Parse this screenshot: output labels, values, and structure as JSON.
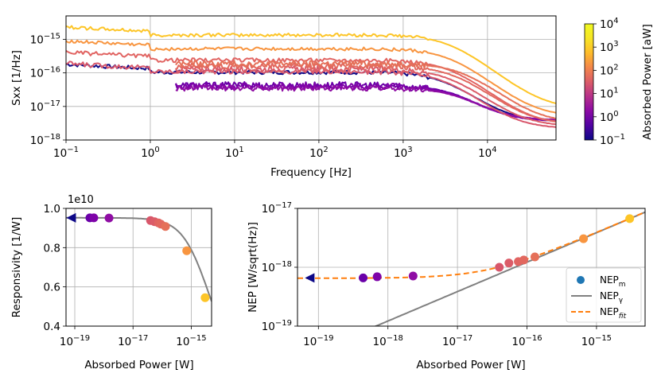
{
  "chart_data": [
    {
      "type": "line",
      "xlabel": "Frequency [Hz]",
      "ylabel": "Sxx [1/Hz]",
      "xscale": "log",
      "yscale": "log",
      "xlim": [
        0.1,
        65000
      ],
      "ylim": [
        1e-18,
        5e-15
      ],
      "x_ticks": [
        {
          "v": 0.1,
          "m": "10",
          "e": "−1"
        },
        {
          "v": 1,
          "m": "10",
          "e": "0"
        },
        {
          "v": 10,
          "m": "10",
          "e": "1"
        },
        {
          "v": 100,
          "m": "10",
          "e": "2"
        },
        {
          "v": 1000,
          "m": "10",
          "e": "3"
        },
        {
          "v": 10000,
          "m": "10",
          "e": "4"
        }
      ],
      "y_ticks": [
        {
          "v": 1e-18,
          "m": "10",
          "e": "−18"
        },
        {
          "v": 1e-17,
          "m": "10",
          "e": "−17"
        },
        {
          "v": 1e-16,
          "m": "10",
          "e": "−16"
        },
        {
          "v": 1e-15,
          "m": "10",
          "e": "−15"
        }
      ],
      "grid": true,
      "colorbar": {
        "label": "Absorbed Power [aW]",
        "scale": "log",
        "range": [
          0.1,
          10000
        ],
        "colormap": "plasma",
        "ticks": [
          {
            "v": 0.1,
            "m": "10",
            "e": "−1"
          },
          {
            "v": 1,
            "m": "10",
            "e": "0"
          },
          {
            "v": 10,
            "m": "10",
            "e": "1"
          },
          {
            "v": 100,
            "m": "10",
            "e": "2"
          },
          {
            "v": 1000,
            "m": "10",
            "e": "3"
          },
          {
            "v": 10000,
            "m": "10",
            "e": "4"
          }
        ]
      },
      "series": [
        {
          "color": "#0d0887",
          "fmin": 0.1,
          "level": 1.05e-16,
          "rolloff_hz": 3000,
          "white": 3.5e-18,
          "noise": 0.06
        },
        {
          "color": "#6a00a8",
          "fmin": 2,
          "level": 4.3e-17,
          "rolloff_hz": 4000,
          "white": 3.6e-18,
          "noise": 0.1
        },
        {
          "color": "#7e03a8",
          "fmin": 2,
          "level": 4e-17,
          "rolloff_hz": 4000,
          "white": 3.8e-18,
          "noise": 0.1
        },
        {
          "color": "#8f0da4",
          "fmin": 2,
          "level": 3.5e-17,
          "rolloff_hz": 4500,
          "white": 3.9e-18,
          "noise": 0.08
        },
        {
          "color": "#d8576b",
          "fmin": 0.1,
          "level": 1.1e-16,
          "rolloff_hz": 3000,
          "white": 2.2e-18,
          "noise": 0.07
        },
        {
          "color": "#db5c68",
          "fmin": 2,
          "level": 1.3e-16,
          "rolloff_hz": 3500,
          "white": 2.6e-18,
          "noise": 0.09
        },
        {
          "color": "#e16462",
          "fmin": 0.1,
          "level": 2.4e-16,
          "rolloff_hz": 3500,
          "white": 2.8e-18,
          "noise": 0.06
        },
        {
          "color": "#e2685f",
          "fmin": 2,
          "level": 1.6e-16,
          "rolloff_hz": 4000,
          "white": 3e-18,
          "noise": 0.09
        },
        {
          "color": "#e57059",
          "fmin": 2,
          "level": 1.9e-16,
          "rolloff_hz": 5000,
          "white": 3.3e-18,
          "noise": 0.09
        },
        {
          "color": "#f89540",
          "fmin": 0.1,
          "level": 5.2e-16,
          "rolloff_hz": 3500,
          "white": 5e-18,
          "noise": 0.05
        },
        {
          "color": "#fdc527",
          "fmin": 0.1,
          "level": 1.35e-15,
          "rolloff_hz": 3500,
          "white": 8.5e-18,
          "noise": 0.05
        }
      ]
    },
    {
      "type": "scatter",
      "xlabel": "Absorbed Power [W]",
      "ylabel": "Responsivity [1/W]",
      "offset_text": {
        "m": "1e10",
        "e": ""
      },
      "xscale": "log",
      "xlim": [
        5e-20,
        5e-15
      ],
      "ylim": [
        0.4,
        1.0
      ],
      "x_ticks": [
        {
          "v": 1e-19,
          "m": "10",
          "e": "−19"
        },
        {
          "v": 1e-17,
          "m": "10",
          "e": "−17"
        },
        {
          "v": 1e-15,
          "m": "10",
          "e": "−15"
        }
      ],
      "y_ticks": [
        {
          "v": 0.4,
          "label": "0.4"
        },
        {
          "v": 0.6,
          "label": "0.6"
        },
        {
          "v": 0.8,
          "label": "0.8"
        },
        {
          "v": 1.0,
          "label": "1.0"
        }
      ],
      "grid": true,
      "points": [
        {
          "x": 3.3e-19,
          "y": 0.952,
          "color": "#6a00a8"
        },
        {
          "x": 4.5e-19,
          "y": 0.952,
          "color": "#7e03a8"
        },
        {
          "x": 1.5e-18,
          "y": 0.951,
          "color": "#8f0da4"
        },
        {
          "x": 4e-17,
          "y": 0.938,
          "color": "#d8576b"
        },
        {
          "x": 5.5e-17,
          "y": 0.932,
          "color": "#db5c68"
        },
        {
          "x": 7.5e-17,
          "y": 0.926,
          "color": "#e16462"
        },
        {
          "x": 9e-17,
          "y": 0.92,
          "color": "#e2685f"
        },
        {
          "x": 1.3e-16,
          "y": 0.908,
          "color": "#e57059"
        },
        {
          "x": 7e-16,
          "y": 0.784,
          "color": "#f89540"
        },
        {
          "x": 3e-15,
          "y": 0.545,
          "color": "#fdc527"
        }
      ],
      "fit_curve": {
        "y0": 0.952,
        "p0": 2.2e-15,
        "color": "#808080"
      },
      "arrow_marker": {
        "x": 7.5e-20,
        "y": 0.952,
        "color": "#0d0887"
      }
    },
    {
      "type": "scatter",
      "xlabel": "Absorbed Power [W]",
      "ylabel": "NEP [W/sqrt(Hz)]",
      "xscale": "log",
      "yscale": "log",
      "xlim": [
        5e-20,
        5e-15
      ],
      "ylim": [
        1e-19,
        1e-17
      ],
      "x_ticks": [
        {
          "v": 1e-19,
          "m": "10",
          "e": "−19"
        },
        {
          "v": 1e-18,
          "m": "10",
          "e": "−18"
        },
        {
          "v": 1e-17,
          "m": "10",
          "e": "−17"
        },
        {
          "v": 1e-16,
          "m": "10",
          "e": "−16"
        },
        {
          "v": 1e-15,
          "m": "10",
          "e": "−15"
        }
      ],
      "y_ticks": [
        {
          "v": 1e-19,
          "m": "10",
          "e": "−19"
        },
        {
          "v": 1e-18,
          "m": "10",
          "e": "−18"
        },
        {
          "v": 1e-17,
          "m": "10",
          "e": "−17"
        }
      ],
      "grid": true,
      "points": [
        {
          "x": 4.4e-19,
          "y": 6.6e-19,
          "color": "#6a00a8"
        },
        {
          "x": 7e-19,
          "y": 6.9e-19,
          "color": "#7e03a8"
        },
        {
          "x": 2.3e-18,
          "y": 7.1e-19,
          "color": "#8f0da4"
        },
        {
          "x": 4e-17,
          "y": 1e-18,
          "color": "#d8576b"
        },
        {
          "x": 5.5e-17,
          "y": 1.18e-18,
          "color": "#db5c68"
        },
        {
          "x": 7.5e-17,
          "y": 1.25e-18,
          "color": "#e16462"
        },
        {
          "x": 9e-17,
          "y": 1.33e-18,
          "color": "#e2685f"
        },
        {
          "x": 1.3e-16,
          "y": 1.5e-18,
          "color": "#e57059"
        },
        {
          "x": 6.5e-16,
          "y": 3.05e-18,
          "color": "#f89540"
        },
        {
          "x": 3e-15,
          "y": 6.7e-18,
          "color": "#fdc527"
        }
      ],
      "nep_gamma": {
        "k": 1.22e-10,
        "color": "#808080"
      },
      "nep_fit": {
        "floor": 6.5e-19,
        "k": 1.22e-10,
        "color": "#ff7f0e"
      },
      "arrow_marker": {
        "x": 7.5e-20,
        "y": 6.6e-19,
        "color": "#0d0887"
      },
      "legend": {
        "position": "lower right",
        "items": [
          {
            "kind": "dot",
            "base": "NEP",
            "sub": "m",
            "sub_style": "normal",
            "color": "#1f77b4"
          },
          {
            "kind": "solid",
            "base": "NEP",
            "sub": "γ",
            "sub_style": "normal",
            "color": "#808080"
          },
          {
            "kind": "dashed",
            "base": "NEP",
            "sub": "fit",
            "sub_style": "italic",
            "color": "#ff7f0e"
          }
        ]
      }
    }
  ]
}
